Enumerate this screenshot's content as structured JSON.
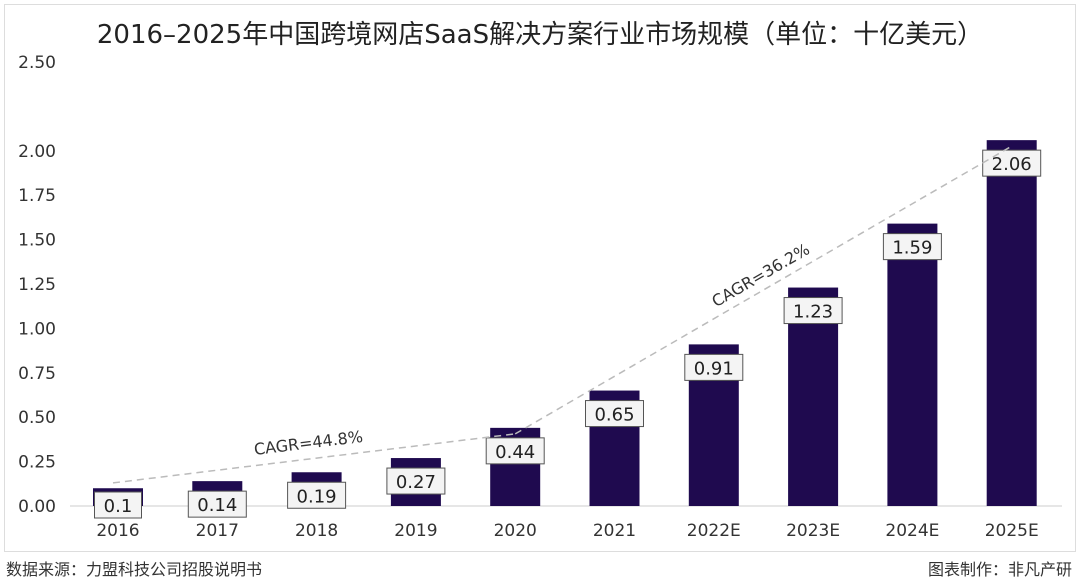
{
  "chart_data": {
    "type": "bar",
    "title": "2016–2025年中国跨境网店SaaS解决方案行业市场规模（单位：十亿美元）",
    "categories": [
      "2016",
      "2017",
      "2018",
      "2019",
      "2020",
      "2021",
      "2022E",
      "2023E",
      "2024E",
      "2025E"
    ],
    "values": [
      0.1,
      0.14,
      0.19,
      0.27,
      0.44,
      0.65,
      0.91,
      1.23,
      1.59,
      2.06
    ],
    "data_labels": [
      "0.1",
      "0.14",
      "0.19",
      "0.27",
      "0.44",
      "0.65",
      "0.91",
      "1.23",
      "1.59",
      "2.06"
    ],
    "yticks": [
      "0.00",
      "0.25",
      "0.50",
      "0.75",
      "1.00",
      "1.25",
      "1.50",
      "1.75",
      "2.00",
      "2.50"
    ],
    "ylim": [
      0,
      2.5
    ],
    "grid": false,
    "bar_color": "#1f0a4f",
    "annotations": [
      {
        "text": "CAGR=44.8%",
        "from": "2016",
        "to": "2020"
      },
      {
        "text": "CAGR=36.2%",
        "from": "2020",
        "to": "2025E"
      }
    ]
  },
  "footer": {
    "source": "数据来源：力盟科技公司招股说明书",
    "maker": "图表制作：非凡产研"
  }
}
